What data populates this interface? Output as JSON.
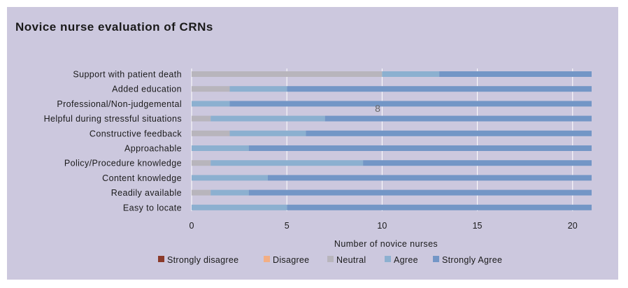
{
  "chart_data": {
    "type": "bar",
    "orientation": "horizontal",
    "stacked": true,
    "title": "Novice nurse evaluation of CRNs",
    "xlabel": "Number of novice nurses",
    "ylabel": "",
    "xlim": [
      0,
      21
    ],
    "xticks": [
      0,
      5,
      10,
      15,
      20
    ],
    "grid": true,
    "legend_position": "bottom",
    "categories": [
      "Support with patient death",
      "Added education",
      "Professional/Non-judgemental",
      "Helpful during stressful situations",
      "Constructive feedback",
      "Approachable",
      "Policy/Procedure knowledge",
      "Content knowledge",
      "Readily available",
      "Easy to locate"
    ],
    "series": [
      {
        "name": "Strongly disagree",
        "color": "#8b3a2a",
        "values": [
          0,
          0,
          0,
          0,
          0,
          0,
          0,
          0,
          0,
          0
        ]
      },
      {
        "name": "Disagree",
        "color": "#f2ae84",
        "values": [
          0,
          0,
          0,
          0,
          0,
          0,
          0,
          0,
          0,
          0
        ]
      },
      {
        "name": "Neutral",
        "color": "#b8b5bc",
        "values": [
          10,
          2,
          0,
          1,
          2,
          0,
          1,
          0,
          1,
          0
        ]
      },
      {
        "name": "Agree",
        "color": "#8cb0d0",
        "values": [
          3,
          3,
          2,
          6,
          4,
          3,
          8,
          4,
          2,
          5
        ]
      },
      {
        "name": "Strongly Agree",
        "color": "#7396c6",
        "values": [
          8,
          16,
          19,
          14,
          15,
          18,
          12,
          17,
          18,
          16
        ]
      }
    ],
    "annotation": "8"
  }
}
